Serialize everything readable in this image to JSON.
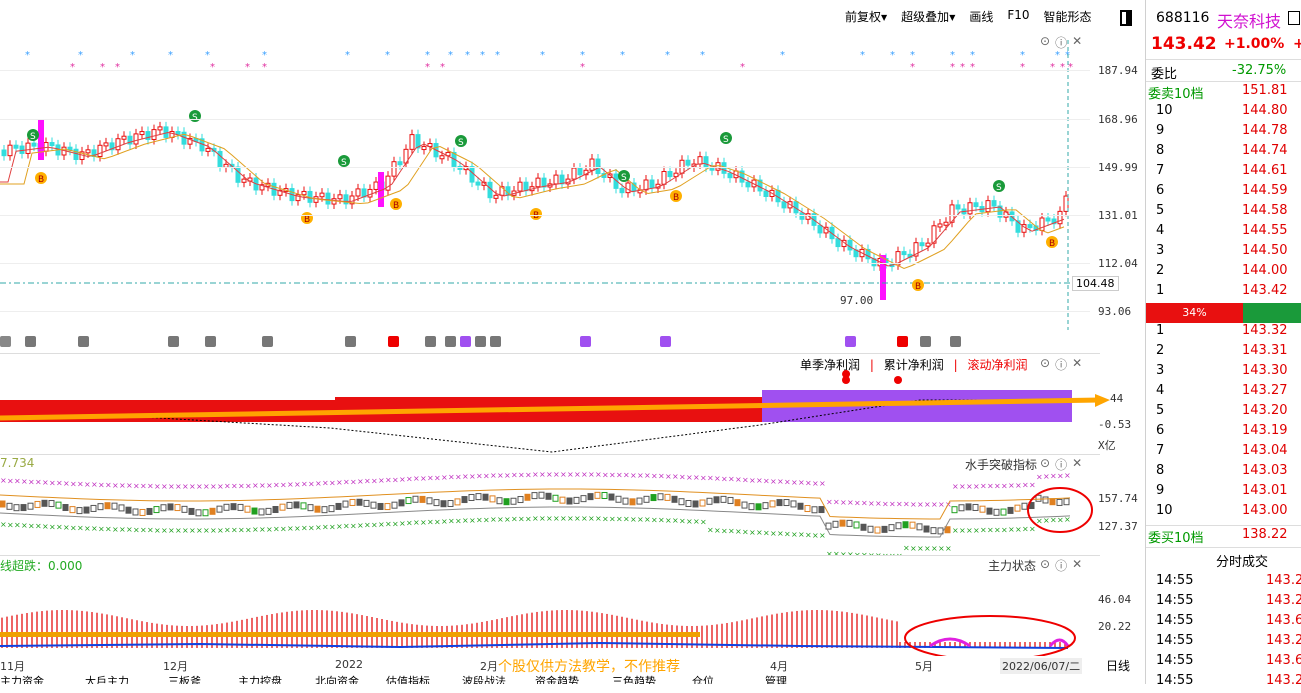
{
  "toolbar": {
    "fuquan": "前复权",
    "overlay": "超级叠加",
    "draw": "画线",
    "f10": "F10",
    "smart": "智能形态"
  },
  "price_axis": [
    "187.94",
    "168.96",
    "149.99",
    "131.01",
    "112.04",
    "93.06"
  ],
  "price_current_line": "104.48",
  "price_low_label": "97.00",
  "profit_panel": {
    "legend": [
      "单季净利润",
      "累计净利润",
      "滚动净利润"
    ],
    "axis": [
      "44",
      "-0.53"
    ],
    "unit": "X亿"
  },
  "sailor_panel": {
    "title": "水手突破指标",
    "prefix": "7.734",
    "axis": [
      "157.74",
      "127.37"
    ]
  },
  "main_force_panel": {
    "title": "主力状态",
    "prefix": "线超跌：0.000",
    "axis": [
      "46.04",
      "20.22"
    ]
  },
  "dates": [
    "11月",
    "12月",
    "2022",
    "2月",
    "4月",
    "5月"
  ],
  "date_cursor": "2022/06/07/二",
  "period": "日线",
  "disclaimer": "个股仅供方法教学，不作推荐",
  "bottom_tabs": [
    "主力资金",
    "大戶主力",
    "三板斧",
    "主力控盘",
    "北向资金",
    "估值指标",
    "波段战法",
    "资金趋势",
    "三色趋势",
    "仓位",
    "管理"
  ],
  "stock": {
    "code": "688116",
    "name": "天奈科技",
    "price": "143.42",
    "change": "+1.00%",
    "change_trunc": "+",
    "weibi_label": "委比",
    "weibi_value": "-32.75%",
    "sell10_label": "委卖10档",
    "sell10_value": "151.81",
    "buy10_label": "委买10档",
    "buy10_value": "138.22",
    "ratio": "34%",
    "asks": [
      {
        "lv": "10",
        "p": "144.80"
      },
      {
        "lv": "9",
        "p": "144.78"
      },
      {
        "lv": "8",
        "p": "144.74"
      },
      {
        "lv": "7",
        "p": "144.61"
      },
      {
        "lv": "6",
        "p": "144.59"
      },
      {
        "lv": "5",
        "p": "144.58"
      },
      {
        "lv": "4",
        "p": "144.55"
      },
      {
        "lv": "3",
        "p": "144.50"
      },
      {
        "lv": "2",
        "p": "144.00"
      },
      {
        "lv": "1",
        "p": "143.42"
      }
    ],
    "bids": [
      {
        "lv": "1",
        "p": "143.32"
      },
      {
        "lv": "2",
        "p": "143.31"
      },
      {
        "lv": "3",
        "p": "143.30"
      },
      {
        "lv": "4",
        "p": "143.27"
      },
      {
        "lv": "5",
        "p": "143.20"
      },
      {
        "lv": "6",
        "p": "143.19"
      },
      {
        "lv": "7",
        "p": "143.04"
      },
      {
        "lv": "8",
        "p": "143.03"
      },
      {
        "lv": "9",
        "p": "143.01"
      },
      {
        "lv": "10",
        "p": "143.00"
      }
    ],
    "ticks_title": "分时成交",
    "ticks": [
      {
        "t": "14:55",
        "p": "143.2"
      },
      {
        "t": "14:55",
        "p": "143.2"
      },
      {
        "t": "14:55",
        "p": "143.6"
      },
      {
        "t": "14:55",
        "p": "143.2"
      },
      {
        "t": "14:55",
        "p": "143.6"
      },
      {
        "t": "14:55",
        "p": "143.2"
      }
    ]
  }
}
